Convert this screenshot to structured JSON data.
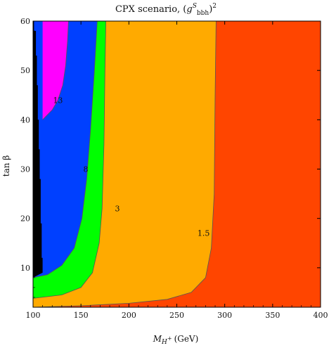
{
  "chart_data": {
    "type": "contour",
    "title": {
      "prefix": "CPX scenario, (",
      "g": "g",
      "sup_s": "S",
      "sub_bbh": "bbh",
      "close": ")",
      "power": "2"
    },
    "xlabel": {
      "main": "M",
      "sub": "H",
      "subsup": "+",
      "unit": "(GeV)"
    },
    "ylabel": "tan β",
    "xlim": [
      100,
      400
    ],
    "ylim": [
      2,
      60
    ],
    "xticks": [
      100,
      150,
      200,
      250,
      300,
      350,
      400
    ],
    "yticks": [
      10,
      20,
      30,
      40,
      50,
      60
    ],
    "colors": {
      "region_gt_13": "#ff00ff",
      "region_8_13": "#0040ff",
      "region_3_8": "#00ff00",
      "region_1_5_3": "#ffaa00",
      "region_lt_1_5": "#ff4500",
      "excluded": "#000000",
      "contour_line": "#555555"
    },
    "contour_labels": [
      {
        "text": "13",
        "x": 126,
        "y": 44
      },
      {
        "text": "8",
        "x": 155,
        "y": 30
      },
      {
        "text": "3",
        "x": 188,
        "y": 22
      },
      {
        "text": "1.5",
        "x": 278,
        "y": 17
      }
    ]
  }
}
